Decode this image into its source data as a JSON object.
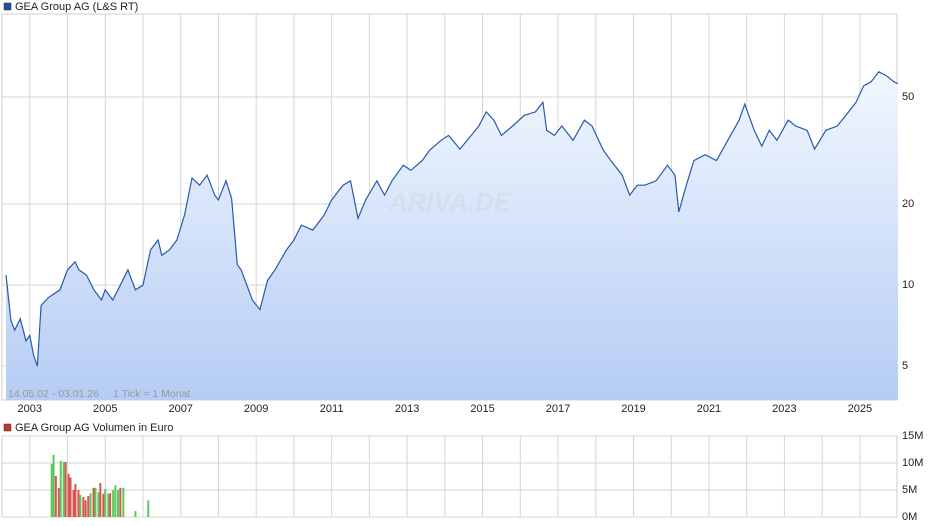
{
  "chart_data": [
    {
      "type": "line",
      "title": "GEA Group AG (L&S RT)",
      "legend_color": "#1f4e9c",
      "note_range": "14.05.02 - 03.01.26",
      "note_tick": "1 Tick = 1 Monat",
      "watermark": "ARIVA.DE",
      "x": [
        2002.37,
        2002.5,
        2002.6,
        2002.75,
        2002.9,
        2003.0,
        2003.1,
        2003.2,
        2003.3,
        2003.5,
        2003.8,
        2004.0,
        2004.2,
        2004.3,
        2004.5,
        2004.7,
        2004.9,
        2005.0,
        2005.2,
        2005.4,
        2005.6,
        2005.8,
        2006.0,
        2006.2,
        2006.4,
        2006.5,
        2006.7,
        2006.9,
        2007.1,
        2007.3,
        2007.5,
        2007.7,
        2007.9,
        2008.0,
        2008.2,
        2008.35,
        2008.5,
        2008.6,
        2008.9,
        2009.1,
        2009.3,
        2009.5,
        2009.8,
        2010.0,
        2010.2,
        2010.5,
        2010.8,
        2011.0,
        2011.3,
        2011.5,
        2011.7,
        2011.9,
        2012.2,
        2012.4,
        2012.6,
        2012.9,
        2013.1,
        2013.4,
        2013.6,
        2013.9,
        2014.1,
        2014.4,
        2014.7,
        2014.9,
        2015.1,
        2015.3,
        2015.5,
        2015.8,
        2016.1,
        2016.4,
        2016.6,
        2016.7,
        2016.9,
        2017.1,
        2017.4,
        2017.7,
        2017.9,
        2018.2,
        2018.4,
        2018.7,
        2018.9,
        2019.1,
        2019.3,
        2019.6,
        2019.9,
        2020.1,
        2020.2,
        2020.4,
        2020.6,
        2020.9,
        2021.2,
        2021.5,
        2021.8,
        2021.95,
        2022.2,
        2022.4,
        2022.6,
        2022.8,
        2023.1,
        2023.3,
        2023.6,
        2023.8,
        2024.1,
        2024.4,
        2024.7,
        2024.9,
        2025.1,
        2025.3,
        2025.5,
        2025.7,
        2025.9,
        2026.01
      ],
      "series": [
        {
          "name": "GEA Group AG (L&S RT)",
          "color": "#2659b0",
          "values": [
            10.9,
            7.4,
            6.8,
            7.5,
            6.2,
            6.5,
            5.5,
            5.0,
            8.4,
            9.0,
            9.6,
            11.4,
            12.2,
            11.4,
            10.9,
            9.6,
            8.8,
            9.6,
            8.8,
            10.0,
            11.4,
            9.6,
            10.0,
            13.5,
            14.7,
            12.9,
            13.5,
            14.7,
            18.2,
            25.0,
            23.5,
            25.6,
            21.6,
            20.7,
            24.4,
            21.0,
            11.9,
            11.4,
            8.8,
            8.1,
            10.4,
            11.4,
            13.5,
            14.7,
            16.7,
            16.0,
            18.2,
            20.7,
            23.5,
            24.4,
            17.7,
            20.7,
            24.4,
            21.6,
            24.4,
            27.9,
            26.7,
            29.0,
            31.7,
            34.5,
            36.0,
            32.0,
            36.0,
            39.0,
            44.0,
            41.0,
            36.0,
            39.0,
            42.7,
            44.0,
            47.8,
            37.6,
            36.0,
            39.0,
            34.5,
            41.0,
            39.0,
            31.7,
            29.0,
            25.6,
            21.6,
            23.5,
            23.5,
            24.4,
            27.9,
            25.6,
            18.7,
            23.5,
            29.0,
            30.5,
            29.0,
            34.5,
            41.0,
            47.0,
            37.6,
            32.8,
            37.6,
            34.5,
            41.0,
            39.0,
            37.6,
            32.0,
            37.6,
            39.0,
            44.0,
            47.8,
            55.0,
            57.0,
            62.0,
            60.0,
            57.0,
            56.0
          ]
        }
      ],
      "xlim": [
        2002.37,
        2026.01
      ],
      "xticks": [
        2003,
        2005,
        2007,
        2009,
        2011,
        2013,
        2015,
        2017,
        2019,
        2021,
        2023,
        2025
      ],
      "xminor_ticks": [
        2004,
        2006,
        2008,
        2010,
        2012,
        2014,
        2016,
        2018,
        2020,
        2022,
        2024
      ],
      "ylim": [
        3.74,
        101.7
      ],
      "yticks": [
        5,
        10,
        20,
        50
      ],
      "log_scale": true,
      "grid": true
    },
    {
      "type": "bar",
      "title": "GEA Group AG Volumen in Euro",
      "legend_color": "#c0392b",
      "x": [
        2003.58,
        2003.63,
        2003.69,
        2003.77,
        2003.82,
        2003.9,
        2003.95,
        2004.03,
        2004.08,
        2004.16,
        2004.21,
        2004.29,
        2004.34,
        2004.42,
        2004.48,
        2004.55,
        2004.61,
        2004.69,
        2004.74,
        2004.82,
        2004.87,
        2004.95,
        2005.0,
        2005.08,
        2005.13,
        2005.21,
        2005.27,
        2005.34,
        2005.4,
        2005.48,
        2005.8,
        2006.14
      ],
      "values": [
        9800000,
        11500000,
        7600000,
        5400000,
        10400000,
        10200000,
        10200000,
        8000000,
        7300000,
        5000000,
        6100000,
        5000000,
        4100000,
        3700000,
        3100000,
        3900000,
        4400000,
        5400000,
        5400000,
        4600000,
        6300000,
        4300000,
        5200000,
        4300000,
        4400000,
        5000000,
        5900000,
        5000000,
        5400000,
        5400000,
        1100000,
        3100000
      ],
      "colors": [
        "#5ac85a",
        "#5ac85a",
        "#d9534f",
        "#d9534f",
        "#5ac85a",
        "#5ac85a",
        "#d9534f",
        "#d9534f",
        "#d9534f",
        "#d9534f",
        "#d9534f",
        "#d9534f",
        "#5ac85a",
        "#d9534f",
        "#d9534f",
        "#d9534f",
        "#5ac85a",
        "#d9534f",
        "#5ac85a",
        "#5ac85a",
        "#d9534f",
        "#d9534f",
        "#5ac85a",
        "#5ac85a",
        "#d9534f",
        "#5ac85a",
        "#5ac85a",
        "#5ac85a",
        "#d9534f",
        "#5ac85a",
        "#5ac85a",
        "#5ac85a"
      ],
      "xlim": [
        2002.37,
        2026.01
      ],
      "ylim": [
        0,
        15000000
      ],
      "yticks": [
        {
          "value": 0,
          "label": "0M"
        },
        {
          "value": 5000000,
          "label": "5M"
        },
        {
          "value": 10000000,
          "label": "10M"
        },
        {
          "value": 15000000,
          "label": "15M"
        }
      ],
      "grid": true
    }
  ]
}
